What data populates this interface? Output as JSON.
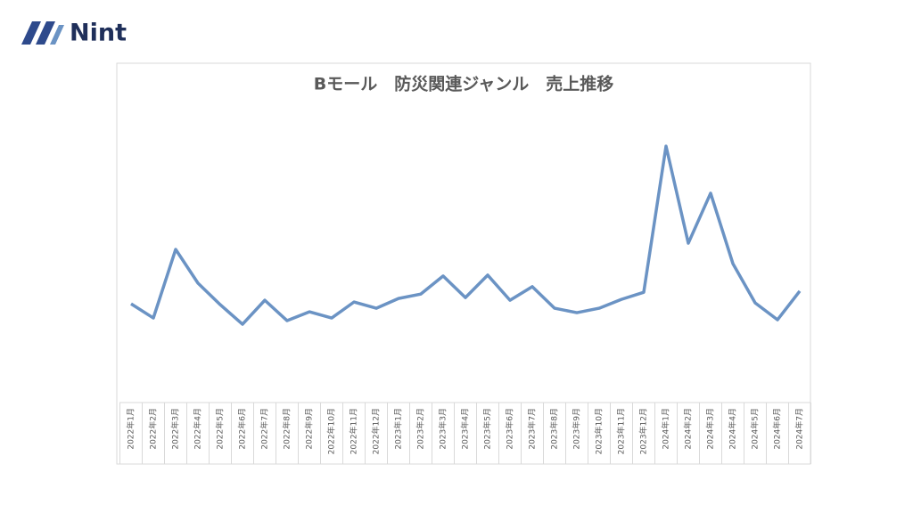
{
  "logo": "Nint",
  "chart_data": {
    "type": "line",
    "title": "Bモール　防災関連ジャンル　売上推移",
    "categories": [
      "2022年1月",
      "2022年2月",
      "2022年3月",
      "2022年4月",
      "2022年5月",
      "2022年6月",
      "2022年7月",
      "2022年8月",
      "2022年9月",
      "2022年10月",
      "2022年11月",
      "2022年12月",
      "2023年1月",
      "2023年2月",
      "2023年3月",
      "2023年4月",
      "2023年5月",
      "2023年6月",
      "2023年7月",
      "2023年8月",
      "2023年9月",
      "2023年10月",
      "2023年11月",
      "2023年12月",
      "2024年1月",
      "2024年2月",
      "2024年3月",
      "2024年4月",
      "2024年5月",
      "2024年6月",
      "2024年7月"
    ],
    "values": [
      33.4,
      28.6,
      51.8,
      40.4,
      33.1,
      26.5,
      34.6,
      27.7,
      30.7,
      28.6,
      34.0,
      31.9,
      35.2,
      36.7,
      42.8,
      35.5,
      43.1,
      34.6,
      39.2,
      31.9,
      30.4,
      31.9,
      34.9,
      37.3,
      86.7,
      53.9,
      70.8,
      47.0,
      33.7,
      28.0,
      37.7
    ],
    "color": "#6b93c4",
    "ylim": [
      0,
      100
    ]
  }
}
